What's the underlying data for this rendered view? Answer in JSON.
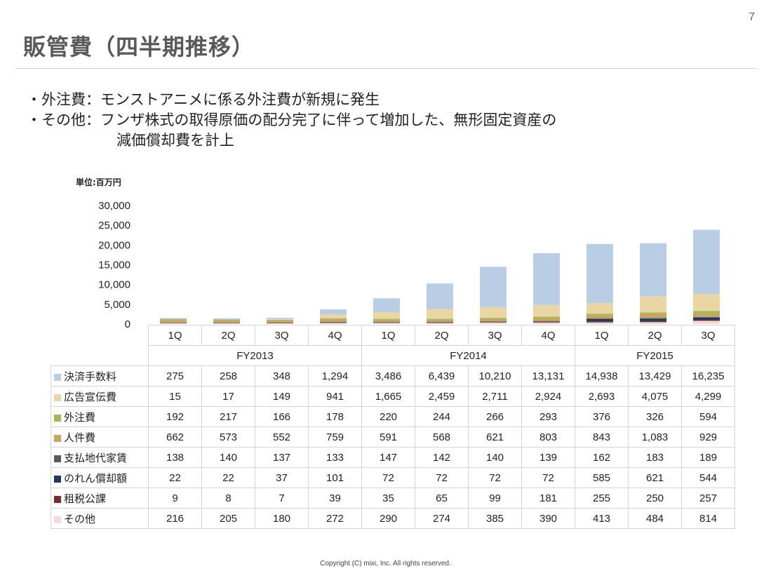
{
  "page_number": "7",
  "title": "販管費（四半期推移）",
  "bullets": [
    "・外注費：モンストアニメに係る外注費が新規に発生",
    "・その他：フンザ株式の取得原価の配分完了に伴って増加した、無形固定資産の",
    "減価償却費を計上"
  ],
  "unit_label": "単位:百万円",
  "footer": "Copyright (C) mixi, Inc. All rights reserved.",
  "chart_data": {
    "type": "bar",
    "stacked": true,
    "categories": [
      "1Q",
      "2Q",
      "3Q",
      "4Q",
      "1Q",
      "2Q",
      "3Q",
      "4Q",
      "1Q",
      "2Q",
      "3Q"
    ],
    "fiscal_years": [
      {
        "label": "FY2013",
        "quarters": 4
      },
      {
        "label": "FY2014",
        "quarters": 4
      },
      {
        "label": "FY2015",
        "quarters": 3
      }
    ],
    "y_ticks": [
      "30,000",
      "25,000",
      "20,000",
      "15,000",
      "10,000",
      "5,000",
      "0"
    ],
    "ylim": [
      0,
      30000
    ],
    "grid": false,
    "series": [
      {
        "name": "決済手数料",
        "color": "#b9cde5",
        "values": [
          275,
          258,
          348,
          1294,
          3486,
          6439,
          10210,
          13131,
          14938,
          13429,
          16235
        ],
        "labels": [
          "275",
          "258",
          "348",
          "1,294",
          "3,486",
          "6,439",
          "10,210",
          "13,131",
          "14,938",
          "13,429",
          "16,235"
        ]
      },
      {
        "name": "広告宣伝費",
        "color": "#ead5a4",
        "values": [
          15,
          17,
          149,
          941,
          1665,
          2459,
          2711,
          2924,
          2693,
          4075,
          4299
        ],
        "labels": [
          "15",
          "17",
          "149",
          "941",
          "1,665",
          "2,459",
          "2,711",
          "2,924",
          "2,693",
          "4,075",
          "4,299"
        ]
      },
      {
        "name": "外注費",
        "color": "#9bbb59",
        "values": [
          192,
          217,
          166,
          178,
          220,
          244,
          266,
          293,
          376,
          326,
          594
        ],
        "labels": [
          "192",
          "217",
          "166",
          "178",
          "220",
          "244",
          "266",
          "293",
          "376",
          "326",
          "594"
        ]
      },
      {
        "name": "人件費",
        "color": "#c9a45c",
        "values": [
          662,
          573,
          552,
          759,
          591,
          568,
          621,
          803,
          843,
          1083,
          929
        ],
        "labels": [
          "662",
          "573",
          "552",
          "759",
          "591",
          "568",
          "621",
          "803",
          "843",
          "1,083",
          "929"
        ]
      },
      {
        "name": "支払地代家賃",
        "color": "#595959",
        "values": [
          138,
          140,
          137,
          133,
          147,
          142,
          140,
          139,
          162,
          183,
          189
        ],
        "labels": [
          "138",
          "140",
          "137",
          "133",
          "147",
          "142",
          "140",
          "139",
          "162",
          "183",
          "189"
        ]
      },
      {
        "name": "のれん償却額",
        "color": "#1f3864",
        "values": [
          22,
          22,
          37,
          101,
          72,
          72,
          72,
          72,
          585,
          621,
          544
        ],
        "labels": [
          "22",
          "22",
          "37",
          "101",
          "72",
          "72",
          "72",
          "72",
          "585",
          "621",
          "544"
        ]
      },
      {
        "name": "租税公課",
        "color": "#7b2c2c",
        "values": [
          9,
          8,
          7,
          39,
          35,
          65,
          99,
          181,
          255,
          250,
          257
        ],
        "labels": [
          "9",
          "8",
          "7",
          "39",
          "35",
          "65",
          "99",
          "181",
          "255",
          "250",
          "257"
        ]
      },
      {
        "name": "その他",
        "color": "#f2dcdb",
        "values": [
          216,
          205,
          180,
          272,
          290,
          274,
          385,
          390,
          413,
          484,
          814
        ],
        "labels": [
          "216",
          "205",
          "180",
          "272",
          "290",
          "274",
          "385",
          "390",
          "413",
          "484",
          "814"
        ]
      }
    ]
  }
}
